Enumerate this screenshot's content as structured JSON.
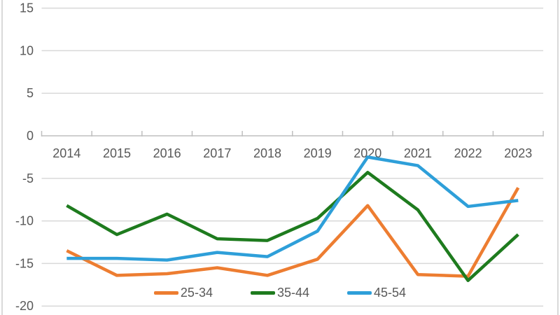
{
  "chart_data": {
    "type": "line",
    "title": "",
    "categories": [
      "2014",
      "2015",
      "2016",
      "2017",
      "2018",
      "2019",
      "2020",
      "2021",
      "2022",
      "2023"
    ],
    "series": [
      {
        "name": "25-34",
        "color": "#ED7D31",
        "values": [
          -13.5,
          -16.4,
          -16.2,
          -15.5,
          -16.4,
          -14.5,
          -8.2,
          -16.3,
          -16.5,
          -6.1
        ]
      },
      {
        "name": "35-44",
        "color": "#1E7B1E",
        "values": [
          -8.2,
          -11.6,
          -9.2,
          -12.1,
          -12.3,
          -9.7,
          -4.3,
          -8.7,
          -17.0,
          -11.6
        ]
      },
      {
        "name": "45-54",
        "color": "#2E9FD9",
        "values": [
          -14.4,
          -14.4,
          -14.6,
          -13.7,
          -14.2,
          -11.2,
          -2.5,
          -3.5,
          -8.3,
          -7.6
        ]
      }
    ],
    "y_axis": {
      "min": -20,
      "max": 15,
      "step": 5,
      "tick_labels": [
        "15",
        "10",
        "5",
        "0",
        "-5",
        "-10",
        "-15",
        "-20"
      ]
    },
    "x_axis": {
      "tick_labels": [
        "2014",
        "2015",
        "2016",
        "2017",
        "2018",
        "2019",
        "2020",
        "2021",
        "2022",
        "2023"
      ]
    },
    "legend": {
      "position": "bottom"
    },
    "grid": true,
    "xlabel": "",
    "ylabel": "",
    "ylim": [
      -20,
      15
    ],
    "colors": {
      "gridline": "#D9D9D9",
      "axis_line": "#BFBFBF",
      "axis_text": "#595959",
      "chart_border": "#D9D9D9"
    }
  }
}
